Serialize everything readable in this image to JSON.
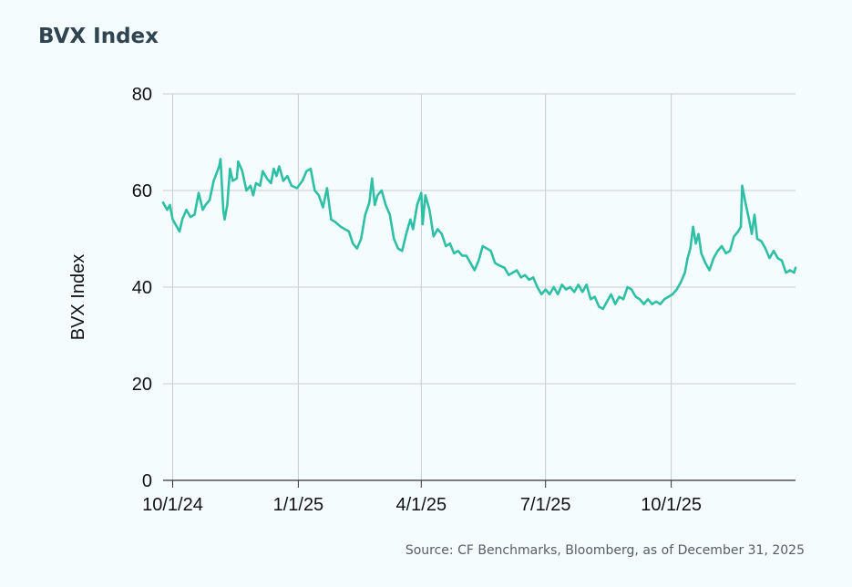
{
  "header": {
    "title": "BVX Index"
  },
  "footer": {
    "source": "Source: CF Benchmarks, Bloomberg, as of December 31, 2025"
  },
  "colors": {
    "line": "#2ebfa5",
    "grid": "#c7cdd1",
    "axis": "#333333",
    "background": "#f4fcfe"
  },
  "chart_data": {
    "type": "line",
    "title": "BVX Index",
    "xlabel": "",
    "ylabel": "BVX Index",
    "ylim": [
      0,
      80
    ],
    "yticks": [
      0,
      20,
      40,
      60,
      80
    ],
    "xlim": [
      "2024-09-24",
      "2025-12-31"
    ],
    "xticks": [
      {
        "date": "2024-10-01",
        "label": "10/1/24"
      },
      {
        "date": "2025-01-01",
        "label": "1/1/25"
      },
      {
        "date": "2025-04-01",
        "label": "4/1/25"
      },
      {
        "date": "2025-07-01",
        "label": "7/1/25"
      },
      {
        "date": "2025-10-01",
        "label": "10/1/25"
      }
    ],
    "grid": true,
    "series": [
      {
        "name": "",
        "points": [
          [
            "2024-09-24",
            57.5
          ],
          [
            "2024-09-27",
            56
          ],
          [
            "2024-09-29",
            57
          ],
          [
            "2024-10-01",
            54
          ],
          [
            "2024-10-04",
            52.5
          ],
          [
            "2024-10-06",
            51.5
          ],
          [
            "2024-10-08",
            54
          ],
          [
            "2024-10-11",
            56
          ],
          [
            "2024-10-14",
            54.5
          ],
          [
            "2024-10-17",
            55
          ],
          [
            "2024-10-20",
            59.5
          ],
          [
            "2024-10-23",
            56
          ],
          [
            "2024-10-25",
            57
          ],
          [
            "2024-10-28",
            58
          ],
          [
            "2024-10-31",
            62
          ],
          [
            "2024-11-04",
            65
          ],
          [
            "2024-11-05",
            66.5
          ],
          [
            "2024-11-07",
            56
          ],
          [
            "2024-11-08",
            54
          ],
          [
            "2024-11-10",
            57
          ],
          [
            "2024-11-12",
            64.5
          ],
          [
            "2024-11-14",
            62
          ],
          [
            "2024-11-17",
            62.5
          ],
          [
            "2024-11-18",
            66
          ],
          [
            "2024-11-21",
            64
          ],
          [
            "2024-11-24",
            60
          ],
          [
            "2024-11-27",
            61
          ],
          [
            "2024-11-29",
            59
          ],
          [
            "2024-12-01",
            61.5
          ],
          [
            "2024-12-04",
            61
          ],
          [
            "2024-12-06",
            64
          ],
          [
            "2024-12-09",
            62.5
          ],
          [
            "2024-12-12",
            61.5
          ],
          [
            "2024-12-14",
            64.5
          ],
          [
            "2024-12-16",
            63
          ],
          [
            "2024-12-18",
            65
          ],
          [
            "2024-12-21",
            62
          ],
          [
            "2024-12-24",
            63
          ],
          [
            "2024-12-27",
            61
          ],
          [
            "2024-12-31",
            60.5
          ],
          [
            "2025-01-04",
            62
          ],
          [
            "2025-01-07",
            64
          ],
          [
            "2025-01-10",
            64.5
          ],
          [
            "2025-01-13",
            60
          ],
          [
            "2025-01-16",
            59
          ],
          [
            "2025-01-19",
            56.5
          ],
          [
            "2025-01-22",
            60.5
          ],
          [
            "2025-01-25",
            54
          ],
          [
            "2025-01-28",
            53.5
          ],
          [
            "2025-02-01",
            52.5
          ],
          [
            "2025-02-04",
            52
          ],
          [
            "2025-02-07",
            51.5
          ],
          [
            "2025-02-10",
            49
          ],
          [
            "2025-02-13",
            48
          ],
          [
            "2025-02-16",
            50
          ],
          [
            "2025-02-19",
            55
          ],
          [
            "2025-02-22",
            57.5
          ],
          [
            "2025-02-24",
            62.5
          ],
          [
            "2025-02-26",
            57
          ],
          [
            "2025-02-28",
            59
          ],
          [
            "2025-03-03",
            60
          ],
          [
            "2025-03-06",
            57
          ],
          [
            "2025-03-09",
            55
          ],
          [
            "2025-03-12",
            50
          ],
          [
            "2025-03-15",
            48
          ],
          [
            "2025-03-18",
            47.5
          ],
          [
            "2025-03-21",
            51
          ],
          [
            "2025-03-24",
            54
          ],
          [
            "2025-03-26",
            52
          ],
          [
            "2025-03-29",
            57
          ],
          [
            "2025-04-01",
            59.5
          ],
          [
            "2025-04-02",
            53
          ],
          [
            "2025-04-04",
            59
          ],
          [
            "2025-04-07",
            56
          ],
          [
            "2025-04-10",
            50.5
          ],
          [
            "2025-04-13",
            52
          ],
          [
            "2025-04-16",
            51
          ],
          [
            "2025-04-19",
            48.5
          ],
          [
            "2025-04-22",
            49
          ],
          [
            "2025-04-25",
            47
          ],
          [
            "2025-04-28",
            47.5
          ],
          [
            "2025-05-01",
            46.5
          ],
          [
            "2025-05-04",
            46.5
          ],
          [
            "2025-05-07",
            45
          ],
          [
            "2025-05-10",
            43.5
          ],
          [
            "2025-05-13",
            45.5
          ],
          [
            "2025-05-16",
            48.5
          ],
          [
            "2025-05-19",
            48
          ],
          [
            "2025-05-22",
            47.5
          ],
          [
            "2025-05-25",
            45
          ],
          [
            "2025-05-28",
            44.5
          ],
          [
            "2025-06-01",
            44
          ],
          [
            "2025-06-04",
            42.5
          ],
          [
            "2025-06-07",
            43
          ],
          [
            "2025-06-10",
            43.5
          ],
          [
            "2025-06-13",
            42
          ],
          [
            "2025-06-16",
            42.5
          ],
          [
            "2025-06-19",
            41.5
          ],
          [
            "2025-06-22",
            42
          ],
          [
            "2025-06-25",
            40
          ],
          [
            "2025-06-28",
            38.5
          ],
          [
            "2025-07-01",
            39.5
          ],
          [
            "2025-07-04",
            38.5
          ],
          [
            "2025-07-07",
            40
          ],
          [
            "2025-07-10",
            38.5
          ],
          [
            "2025-07-13",
            40.5
          ],
          [
            "2025-07-16",
            39.5
          ],
          [
            "2025-07-19",
            40
          ],
          [
            "2025-07-22",
            39
          ],
          [
            "2025-07-25",
            40.5
          ],
          [
            "2025-07-28",
            39
          ],
          [
            "2025-07-31",
            40.5
          ],
          [
            "2025-08-03",
            37.5
          ],
          [
            "2025-08-06",
            38
          ],
          [
            "2025-08-09",
            36
          ],
          [
            "2025-08-12",
            35.5
          ],
          [
            "2025-08-15",
            37
          ],
          [
            "2025-08-18",
            38.5
          ],
          [
            "2025-08-21",
            36.5
          ],
          [
            "2025-08-24",
            38
          ],
          [
            "2025-08-27",
            37.5
          ],
          [
            "2025-08-30",
            40
          ],
          [
            "2025-09-02",
            39.5
          ],
          [
            "2025-09-05",
            38
          ],
          [
            "2025-09-08",
            37.5
          ],
          [
            "2025-09-11",
            36.5
          ],
          [
            "2025-09-14",
            37.5
          ],
          [
            "2025-09-17",
            36.5
          ],
          [
            "2025-09-20",
            37
          ],
          [
            "2025-09-23",
            36.5
          ],
          [
            "2025-09-26",
            37.5
          ],
          [
            "2025-09-29",
            38
          ],
          [
            "2025-10-02",
            38.5
          ],
          [
            "2025-10-05",
            39.5
          ],
          [
            "2025-10-08",
            41
          ],
          [
            "2025-10-11",
            43
          ],
          [
            "2025-10-13",
            46
          ],
          [
            "2025-10-15",
            48
          ],
          [
            "2025-10-17",
            52.5
          ],
          [
            "2025-10-19",
            49
          ],
          [
            "2025-10-21",
            51
          ],
          [
            "2025-10-23",
            47
          ],
          [
            "2025-10-26",
            45
          ],
          [
            "2025-10-29",
            43.5
          ],
          [
            "2025-11-01",
            46
          ],
          [
            "2025-11-04",
            47.5
          ],
          [
            "2025-11-07",
            48.5
          ],
          [
            "2025-11-10",
            47
          ],
          [
            "2025-11-13",
            47.5
          ],
          [
            "2025-11-16",
            50.5
          ],
          [
            "2025-11-19",
            51.5
          ],
          [
            "2025-11-21",
            52.5
          ],
          [
            "2025-11-22",
            61
          ],
          [
            "2025-11-24",
            58
          ],
          [
            "2025-11-27",
            54
          ],
          [
            "2025-11-29",
            51
          ],
          [
            "2025-12-01",
            55
          ],
          [
            "2025-12-03",
            50
          ],
          [
            "2025-12-06",
            49.5
          ],
          [
            "2025-12-09",
            48
          ],
          [
            "2025-12-12",
            46
          ],
          [
            "2025-12-15",
            47.5
          ],
          [
            "2025-12-18",
            46
          ],
          [
            "2025-12-21",
            45.5
          ],
          [
            "2025-12-24",
            43
          ],
          [
            "2025-12-27",
            43.5
          ],
          [
            "2025-12-30",
            43
          ],
          [
            "2025-12-31",
            44
          ]
        ]
      }
    ]
  }
}
